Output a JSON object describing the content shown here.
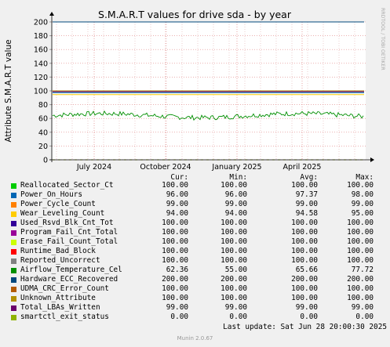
{
  "chart_data": {
    "type": "line",
    "title": "S.M.A.R.T values for drive sda - by year",
    "ylabel": "Attribute S.M.A.R.T value",
    "side_label": "RRDTOOL / TOBI OETIKER",
    "ylim": [
      0,
      200
    ],
    "yticks": [
      0,
      20,
      40,
      60,
      80,
      100,
      120,
      140,
      160,
      180,
      200
    ],
    "xticks": [
      "July 2024",
      "October 2024",
      "January 2025",
      "April 2025"
    ],
    "grid": true,
    "legend_headers": [
      "Cur:",
      "Min:",
      "Avg:",
      "Max:"
    ],
    "series": [
      {
        "name": "Reallocated_Sector_Ct",
        "color": "#00cc00",
        "cur": "100.00",
        "min": "100.00",
        "avg": "100.00",
        "max": "100.00",
        "level": 100
      },
      {
        "name": "Power_On_Hours",
        "color": "#0066b3",
        "cur": "96.00",
        "min": "96.00",
        "avg": "97.37",
        "max": "98.00",
        "level": 97.4
      },
      {
        "name": "Power_Cycle_Count",
        "color": "#ff8000",
        "cur": "99.00",
        "min": "99.00",
        "avg": "99.00",
        "max": "99.00",
        "level": 99
      },
      {
        "name": "Wear_Leveling_Count",
        "color": "#ffcc00",
        "cur": "94.00",
        "min": "94.00",
        "avg": "94.58",
        "max": "95.00",
        "level": 94.6
      },
      {
        "name": "Used_Rsvd_Blk_Cnt_Tot",
        "color": "#330099",
        "cur": "100.00",
        "min": "100.00",
        "avg": "100.00",
        "max": "100.00",
        "level": 100
      },
      {
        "name": "Program_Fail_Cnt_Total",
        "color": "#990099",
        "cur": "100.00",
        "min": "100.00",
        "avg": "100.00",
        "max": "100.00",
        "level": 100
      },
      {
        "name": "Erase_Fail_Count_Total",
        "color": "#ccff00",
        "cur": "100.00",
        "min": "100.00",
        "avg": "100.00",
        "max": "100.00",
        "level": 100
      },
      {
        "name": "Runtime_Bad_Block",
        "color": "#ff0000",
        "cur": "100.00",
        "min": "100.00",
        "avg": "100.00",
        "max": "100.00",
        "level": 100
      },
      {
        "name": "Reported_Uncorrect",
        "color": "#808080",
        "cur": "100.00",
        "min": "100.00",
        "avg": "100.00",
        "max": "100.00",
        "level": 100
      },
      {
        "name": "Airflow_Temperature_Cel",
        "color": "#008f00",
        "cur": "62.36",
        "min": "55.00",
        "avg": "65.66",
        "max": "77.72",
        "level": 65.66,
        "noisy": true
      },
      {
        "name": "Hardware_ECC_Recovered",
        "color": "#00487d",
        "cur": "200.00",
        "min": "200.00",
        "avg": "200.00",
        "max": "200.00",
        "level": 200
      },
      {
        "name": "UDMA_CRC_Error_Count",
        "color": "#b35a00",
        "cur": "100.00",
        "min": "100.00",
        "avg": "100.00",
        "max": "100.00",
        "level": 100
      },
      {
        "name": "Unknown_Attribute",
        "color": "#b38f00",
        "cur": "100.00",
        "min": "100.00",
        "avg": "100.00",
        "max": "100.00",
        "level": 100
      },
      {
        "name": "Total_LBAs_Written",
        "color": "#6b006b",
        "cur": "99.00",
        "min": "99.00",
        "avg": "99.00",
        "max": "99.00",
        "level": 99
      },
      {
        "name": "smartctl_exit_status",
        "color": "#8fb300",
        "cur": "0.00",
        "min": "0.00",
        "avg": "0.00",
        "max": "0.00",
        "level": 0,
        "dashed": true
      }
    ]
  },
  "last_update": "Last update: Sat Jun 28 20:00:30 2025",
  "munin_version": "Munin 2.0.67"
}
